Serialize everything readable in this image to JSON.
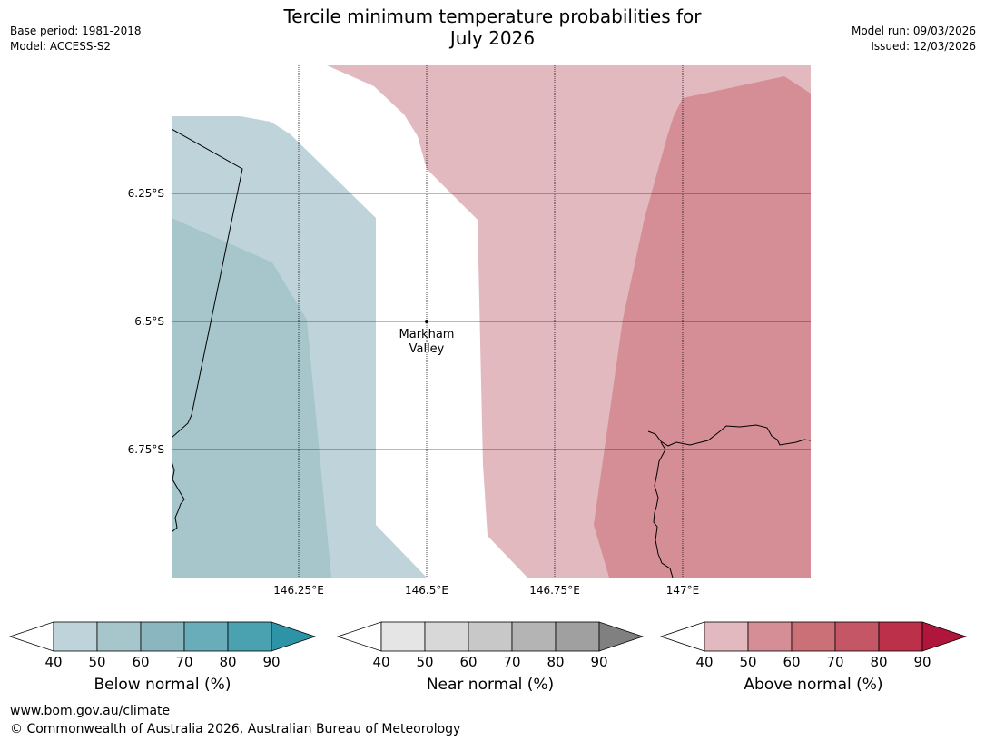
{
  "header": {
    "title_line1": "Tercile minimum temperature probabilities for",
    "title_line2": "July 2026",
    "base_period": "Base period: 1981-2018",
    "model": "Model: ACCESS-S2",
    "model_run": "Model run: 09/03/2026",
    "issued": "Issued: 12/03/2026"
  },
  "map": {
    "lat_labels": [
      "6.25°S",
      "6.5°S",
      "6.75°S"
    ],
    "lon_labels": [
      "146.25°E",
      "146.5°E",
      "146.75°E",
      "147°E"
    ],
    "place_line1": "Markham",
    "place_line2": "Valley"
  },
  "colorbars": [
    {
      "title": "Below normal (%)",
      "ticks": [
        "40",
        "50",
        "60",
        "70",
        "80",
        "90"
      ],
      "colors": [
        "#ffffff",
        "#bfd4da",
        "#a7c6cb",
        "#8ab7bf",
        "#6aadba",
        "#4aa2b0",
        "#2d94a8"
      ]
    },
    {
      "title": "Near normal (%)",
      "ticks": [
        "40",
        "50",
        "60",
        "70",
        "80",
        "90"
      ],
      "colors": [
        "#ffffff",
        "#e5e5e5",
        "#d8d8d8",
        "#c8c8c8",
        "#b4b4b4",
        "#a0a0a0",
        "#808080"
      ]
    },
    {
      "title": "Above normal (%)",
      "ticks": [
        "40",
        "50",
        "60",
        "70",
        "80",
        "90"
      ],
      "colors": [
        "#ffffff",
        "#e1b9be",
        "#d58e96",
        "#cc7078",
        "#c45666",
        "#bc3049",
        "#b0163b"
      ]
    }
  ],
  "footer": {
    "url": "www.bom.gov.au/climate",
    "copyright": "© Commonwealth of Australia 2026, Australian Bureau of Meteorology"
  }
}
